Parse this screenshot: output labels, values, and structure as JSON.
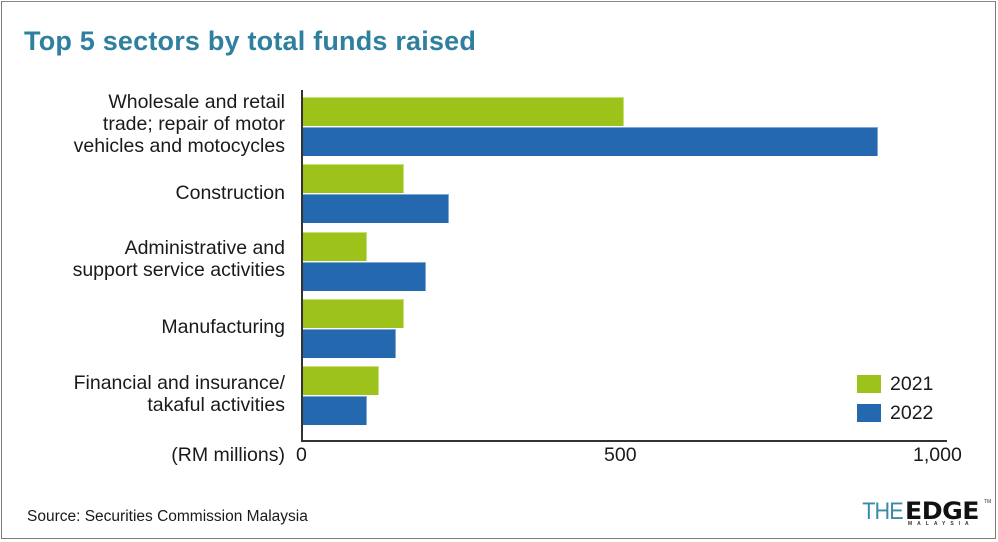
{
  "title": "Top 5 sectors by total funds raised",
  "source": "Source: Securities Commission Malaysia",
  "unit_label": "(RM millions)",
  "logo": {
    "the": "THE",
    "edge": "EDGE",
    "sub": "MALAYSIA",
    "tm": "TM"
  },
  "colors": {
    "2021": "#9dc31b",
    "2022": "#2469b0",
    "title": "#2f7f9e"
  },
  "categories": [
    {
      "line1": "Wholesale and retail",
      "line2": "trade; repair of motor",
      "line3": "vehicles and motocycles"
    },
    {
      "line1": "Construction"
    },
    {
      "line1": "Administrative and",
      "line2": "support service activities"
    },
    {
      "line1": "Manufacturing"
    },
    {
      "line1": "Financial and insurance/",
      "line2": "takaful activities"
    }
  ],
  "ticks": [
    "0",
    "500",
    "1,000"
  ],
  "legend": [
    {
      "label": "2021"
    },
    {
      "label": "2022"
    }
  ],
  "chart_data": {
    "type": "bar",
    "orientation": "horizontal",
    "title": "Top 5 sectors by total funds raised",
    "xlabel": "(RM millions)",
    "ylabel": "",
    "categories": [
      "Wholesale and retail trade; repair of motor vehicles and motocycles",
      "Construction",
      "Administrative and support service activities",
      "Manufacturing",
      "Financial and insurance/takaful activities"
    ],
    "series": [
      {
        "name": "2021",
        "color": "#9dc31b",
        "values": [
          500,
          157,
          100,
          157,
          118
        ]
      },
      {
        "name": "2022",
        "color": "#2469b0",
        "values": [
          895,
          227,
          192,
          145,
          100
        ]
      }
    ],
    "xlim": [
      0,
      1000
    ],
    "xticks": [
      0,
      500,
      1000
    ],
    "xtick_labels": [
      "0",
      "500",
      "1,000"
    ],
    "grid": false,
    "legend_position": "bottom-right",
    "source": "Source: Securities Commission Malaysia"
  }
}
